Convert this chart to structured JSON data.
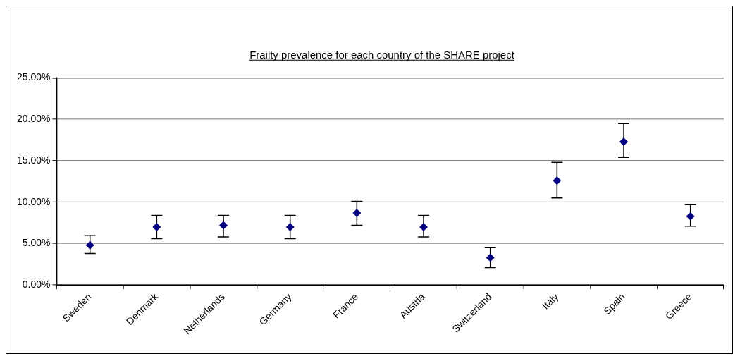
{
  "chart_data": {
    "type": "scatter",
    "title": "Frailty prevalence for each country of the SHARE project",
    "categories": [
      "Sweden",
      "Denmark",
      "Netherlands",
      "Germany",
      "France",
      "Austria",
      "Switzerland",
      "Italy",
      "Spain",
      "Greece"
    ],
    "series": [
      {
        "color": "#000080",
        "values": [
          4.8,
          7.0,
          7.2,
          7.0,
          8.7,
          7.0,
          3.3,
          12.6,
          17.3,
          8.3
        ],
        "errors": [
          [
            3.8,
            6.0
          ],
          [
            5.6,
            8.4
          ],
          [
            5.8,
            8.4
          ],
          [
            5.6,
            8.4
          ],
          [
            7.2,
            10.1
          ],
          [
            5.8,
            8.4
          ],
          [
            2.1,
            4.5
          ],
          [
            10.5,
            14.8
          ],
          [
            15.4,
            19.5
          ],
          [
            7.1,
            9.7
          ]
        ]
      }
    ],
    "ylim": [
      0,
      25
    ],
    "yticks": [
      {
        "value": 0,
        "label": "0.00%"
      },
      {
        "value": 5,
        "label": "5.00%"
      },
      {
        "value": 10,
        "label": "10.00%"
      },
      {
        "value": 15,
        "label": "15.00%"
      },
      {
        "value": 20,
        "label": "20.00%"
      },
      {
        "value": 25,
        "label": "25.00%"
      }
    ],
    "grid": "y",
    "legend": false,
    "marker": "diamond"
  }
}
